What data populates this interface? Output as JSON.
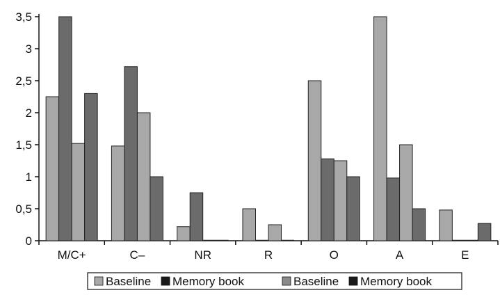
{
  "chart_data": {
    "type": "bar",
    "categories": [
      "M/C+",
      "C–",
      "NR",
      "R",
      "O",
      "A",
      "E"
    ],
    "yticks": [
      "0",
      "0,5",
      "1",
      "1,5",
      "2",
      "2,5",
      "3",
      "3,5"
    ],
    "ylim": [
      0,
      3.5
    ],
    "grid": false,
    "legend_position": "bottom",
    "series": [
      {
        "name": "Baseline",
        "color": "#a8a8a8",
        "values": [
          2.25,
          1.48,
          0.22,
          0.5,
          2.5,
          3.5,
          0.48
        ]
      },
      {
        "name": "Memory book",
        "color": "#6b6b6b",
        "values": [
          3.5,
          2.72,
          0.75,
          0.0,
          1.28,
          0.98,
          0.0
        ]
      },
      {
        "name": "Baseline",
        "color": "#a8a8a8",
        "values": [
          1.52,
          2.0,
          0.0,
          0.25,
          1.25,
          1.5,
          0.0
        ]
      },
      {
        "name": "Memory book",
        "color": "#6b6b6b",
        "values": [
          2.3,
          1.0,
          0.0,
          0.0,
          1.0,
          0.5,
          0.27
        ]
      }
    ],
    "legend_swatch_colors": [
      "#a8a8a8",
      "#1a1a1a",
      "#8a8a8a",
      "#1a1a1a"
    ]
  }
}
